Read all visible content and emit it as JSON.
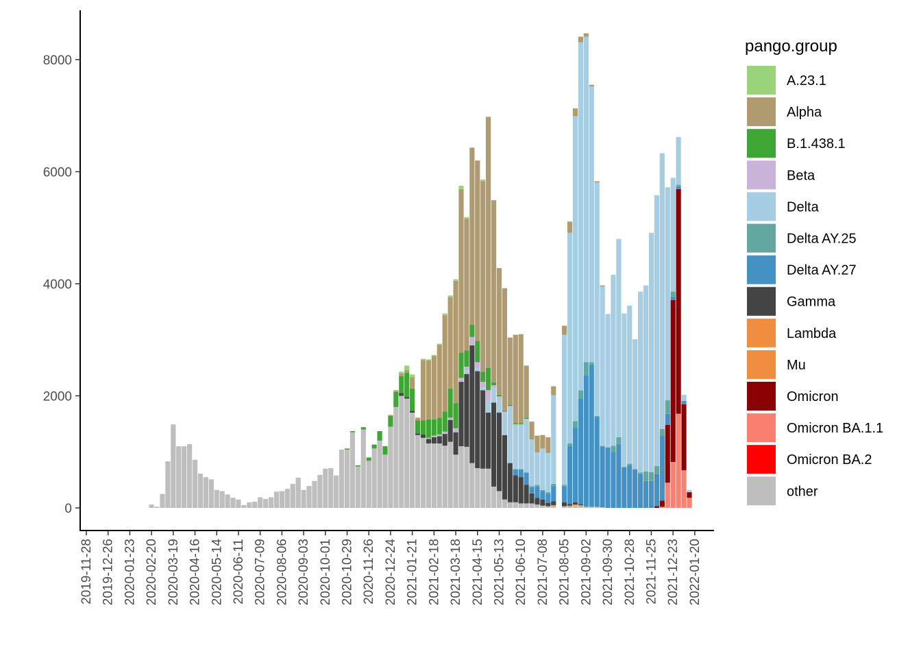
{
  "chart_data": {
    "type": "bar",
    "stacked": true,
    "title": "",
    "xlabel": "",
    "ylabel": "",
    "ylim": [
      0,
      8800
    ],
    "y_ticks": [
      0,
      2000,
      4000,
      6000,
      8000
    ],
    "x_ticks": [
      "2019-11-28",
      "2019-12-26",
      "2020-01-23",
      "2020-02-20",
      "2020-03-19",
      "2020-04-16",
      "2020-05-14",
      "2020-06-11",
      "2020-07-09",
      "2020-08-06",
      "2020-09-03",
      "2020-10-01",
      "2020-10-29",
      "2020-11-26",
      "2020-12-24",
      "2021-01-21",
      "2021-02-18",
      "2021-03-18",
      "2021-04-15",
      "2021-05-13",
      "2021-06-10",
      "2021-07-08",
      "2021-08-05",
      "2021-09-02",
      "2021-09-30",
      "2021-10-28",
      "2021-11-25",
      "2021-12-23",
      "2022-01-20"
    ],
    "x_start": "2019-11-28",
    "bar_interval_days": 7,
    "grid": false,
    "legend": {
      "title": "pango.group",
      "position": "right",
      "entries": [
        {
          "name": "A.23.1",
          "color": "#9ad47a"
        },
        {
          "name": "Alpha",
          "color": "#b09a70"
        },
        {
          "name": "B.1.438.1",
          "color": "#3fa535"
        },
        {
          "name": "Beta",
          "color": "#c9b3d8"
        },
        {
          "name": "Delta",
          "color": "#a6cde2"
        },
        {
          "name": "Delta AY.25",
          "color": "#62a8a0"
        },
        {
          "name": "Delta AY.27",
          "color": "#4491c4"
        },
        {
          "name": "Gamma",
          "color": "#444444"
        },
        {
          "name": "Lambda",
          "color": "#f08e3f"
        },
        {
          "name": "Mu",
          "color": "#f08e3f"
        },
        {
          "name": "Omicron",
          "color": "#8b0000"
        },
        {
          "name": "Omicron BA.1.1",
          "color": "#fa8072"
        },
        {
          "name": "Omicron BA.2",
          "color": "#ff0000"
        },
        {
          "name": "other",
          "color": "#bebebe"
        }
      ]
    },
    "stack_order": [
      "other",
      "Omicron BA.2",
      "Omicron BA.1.1",
      "Omicron",
      "Mu",
      "Lambda",
      "Gamma",
      "Delta AY.27",
      "Delta AY.25",
      "Delta",
      "Beta",
      "B.1.438.1",
      "Alpha",
      "A.23.1"
    ],
    "weeks": [
      {
        "date": "2020-02-20",
        "other": 60
      },
      {
        "date": "2020-02-27",
        "other": 20
      },
      {
        "date": "2020-03-05",
        "other": 250
      },
      {
        "date": "2020-03-12",
        "other": 830
      },
      {
        "date": "2020-03-19",
        "other": 1490
      },
      {
        "date": "2020-03-26",
        "other": 1100
      },
      {
        "date": "2020-04-02",
        "other": 1100
      },
      {
        "date": "2020-04-09",
        "other": 1140
      },
      {
        "date": "2020-04-16",
        "other": 860
      },
      {
        "date": "2020-04-23",
        "other": 610
      },
      {
        "date": "2020-04-30",
        "other": 550
      },
      {
        "date": "2020-05-07",
        "other": 510
      },
      {
        "date": "2020-05-14",
        "other": 320
      },
      {
        "date": "2020-05-21",
        "other": 300
      },
      {
        "date": "2020-05-28",
        "other": 240
      },
      {
        "date": "2020-06-04",
        "other": 180
      },
      {
        "date": "2020-06-11",
        "other": 150
      },
      {
        "date": "2020-06-18",
        "other": 50
      },
      {
        "date": "2020-06-25",
        "other": 100
      },
      {
        "date": "2020-07-02",
        "other": 110
      },
      {
        "date": "2020-07-09",
        "other": 190
      },
      {
        "date": "2020-07-16",
        "other": 160
      },
      {
        "date": "2020-07-23",
        "other": 190
      },
      {
        "date": "2020-07-30",
        "other": 290
      },
      {
        "date": "2020-08-06",
        "other": 300
      },
      {
        "date": "2020-08-13",
        "other": 340
      },
      {
        "date": "2020-08-20",
        "other": 430
      },
      {
        "date": "2020-08-27",
        "other": 540
      },
      {
        "date": "2020-09-03",
        "other": 320
      },
      {
        "date": "2020-09-10",
        "other": 390
      },
      {
        "date": "2020-09-17",
        "other": 480
      },
      {
        "date": "2020-09-24",
        "other": 590
      },
      {
        "date": "2020-10-01",
        "other": 700
      },
      {
        "date": "2020-10-08",
        "other": 710
      },
      {
        "date": "2020-10-15",
        "other": 580
      },
      {
        "date": "2020-10-22",
        "other": 1040
      },
      {
        "date": "2020-10-29",
        "other": 1040,
        "B.1.438.1": 20
      },
      {
        "date": "2020-11-05",
        "other": 1350,
        "B.1.438.1": 20
      },
      {
        "date": "2020-11-12",
        "other": 740,
        "B.1.438.1": 20
      },
      {
        "date": "2020-11-19",
        "other": 1400,
        "B.1.438.1": 40
      },
      {
        "date": "2020-11-26",
        "other": 840,
        "B.1.438.1": 60
      },
      {
        "date": "2020-12-03",
        "other": 1060,
        "B.1.438.1": 70
      },
      {
        "date": "2020-12-10",
        "other": 1200,
        "B.1.438.1": 170
      },
      {
        "date": "2020-12-17",
        "other": 950,
        "B.1.438.1": 150
      },
      {
        "date": "2020-12-24",
        "other": 1450,
        "B.1.438.1": 190,
        "Alpha": 20
      },
      {
        "date": "2020-12-31",
        "other": 1800,
        "B.1.438.1": 270,
        "Alpha": 30
      },
      {
        "date": "2021-01-07",
        "other": 2000,
        "Gamma": 50,
        "B.1.438.1": 300,
        "Alpha": 50,
        "A.23.1": 30
      },
      {
        "date": "2021-01-14",
        "other": 1950,
        "Gamma": 30,
        "B.1.438.1": 430,
        "Alpha": 50,
        "A.23.1": 80
      },
      {
        "date": "2021-01-21",
        "other": 1700,
        "Gamma": 30,
        "B.1.438.1": 400,
        "Alpha": 200,
        "A.23.1": 50
      },
      {
        "date": "2021-01-28",
        "other": 1300,
        "Gamma": 30,
        "B.1.438.1": 230,
        "Alpha": 50
      },
      {
        "date": "2021-02-04",
        "other": 1250,
        "Gamma": 60,
        "B.1.438.1": 250,
        "Alpha": 1080,
        "A.23.1": 20
      },
      {
        "date": "2021-02-11",
        "other": 1150,
        "Gamma": 80,
        "Beta": 20,
        "B.1.438.1": 330,
        "Alpha": 1050,
        "A.23.1": 20
      },
      {
        "date": "2021-02-18",
        "other": 1150,
        "Gamma": 110,
        "Beta": 30,
        "B.1.438.1": 290,
        "Alpha": 1130,
        "A.23.1": 20
      },
      {
        "date": "2021-02-25",
        "other": 1150,
        "Gamma": 130,
        "Beta": 30,
        "B.1.438.1": 300,
        "Alpha": 1300,
        "A.23.1": 20
      },
      {
        "date": "2021-03-04",
        "other": 1110,
        "Gamma": 210,
        "Beta": 40,
        "B.1.438.1": 360,
        "Alpha": 1720,
        "A.23.1": 30
      },
      {
        "date": "2021-03-11",
        "other": 1180,
        "Gamma": 390,
        "Beta": 40,
        "B.1.438.1": 520,
        "Alpha": 1630,
        "A.23.1": 30
      },
      {
        "date": "2021-03-18",
        "other": 950,
        "Gamma": 400,
        "Beta": 70,
        "B.1.438.1": 450,
        "Alpha": 2180,
        "A.23.1": 30
      },
      {
        "date": "2021-03-25",
        "other": 1100,
        "Gamma": 1150,
        "Beta": 70,
        "B.1.438.1": 450,
        "Alpha": 2920,
        "A.23.1": 60
      },
      {
        "date": "2021-04-01",
        "other": 1090,
        "Gamma": 1300,
        "Delta": 60,
        "Beta": 70,
        "B.1.438.1": 290,
        "Alpha": 2350,
        "A.23.1": 30
      },
      {
        "date": "2021-04-08",
        "other": 800,
        "Gamma": 2100,
        "Beta": 150,
        "B.1.438.1": 220,
        "Alpha": 3160
      },
      {
        "date": "2021-04-15",
        "other": 710,
        "Gamma": 1730,
        "Delta": 50,
        "Beta": 110,
        "B.1.438.1": 380,
        "Alpha": 3220
      },
      {
        "date": "2021-04-22",
        "other": 700,
        "Gamma": 1400,
        "Delta": 50,
        "Beta": 100,
        "B.1.438.1": 180,
        "Alpha": 3400,
        "A.23.1": 30
      },
      {
        "date": "2021-04-29",
        "other": 700,
        "Gamma": 1000,
        "Delta": 220,
        "Beta": 180,
        "B.1.438.1": 400,
        "Alpha": 4480
      },
      {
        "date": "2021-05-06",
        "other": 380,
        "Gamma": 1500,
        "Delta": 250,
        "Beta": 60,
        "B.1.438.1": 50,
        "Alpha": 3250
      },
      {
        "date": "2021-05-13",
        "other": 300,
        "Gamma": 1400,
        "Delta": 250,
        "Beta": 40,
        "B.1.438.1": 30,
        "Alpha": 2260
      },
      {
        "date": "2021-05-20",
        "other": 150,
        "Gamma": 1150,
        "Delta": 400,
        "Beta": 20,
        "B.1.438.1": 20,
        "Alpha": 2180
      },
      {
        "date": "2021-05-27",
        "other": 100,
        "Gamma": 700,
        "Delta": 1000,
        "Beta": 20,
        "B.1.438.1": 20,
        "Alpha": 1200
      },
      {
        "date": "2021-06-03",
        "other": 100,
        "Gamma": 480,
        "Delta AY.27": 110,
        "Delta": 800,
        "B.1.438.1": 20,
        "Alpha": 1580
      },
      {
        "date": "2021-06-10",
        "other": 80,
        "Gamma": 470,
        "Delta AY.27": 140,
        "Delta": 800,
        "B.1.438.1": 20,
        "Alpha": 1590
      },
      {
        "date": "2021-06-17",
        "other": 80,
        "Gamma": 330,
        "Delta AY.27": 220,
        "Delta": 960,
        "B.1.438.1": 20,
        "Alpha": 930
      },
      {
        "date": "2021-06-24",
        "other": 80,
        "Gamma": 180,
        "Delta AY.27": 110,
        "Delta AY.25": 20,
        "Delta": 830,
        "Alpha": 320
      },
      {
        "date": "2021-07-01",
        "other": 60,
        "Gamma": 120,
        "Delta AY.27": 200,
        "Delta AY.25": 30,
        "Delta": 580,
        "Alpha": 300
      },
      {
        "date": "2021-07-08",
        "other": 40,
        "Gamma": 110,
        "Delta AY.27": 150,
        "Delta AY.25": 20,
        "Delta": 740,
        "Alpha": 240
      },
      {
        "date": "2021-07-15",
        "other": 30,
        "Gamma": 60,
        "Delta AY.27": 160,
        "Delta AY.25": 30,
        "Delta": 700,
        "Alpha": 280
      },
      {
        "date": "2021-07-22",
        "other": 30,
        "Gamma": 70,
        "Lambda": 20,
        "Delta AY.27": 270,
        "Delta AY.25": 40,
        "Delta": 1580,
        "Alpha": 160
      },
      {
        "date": "2021-08-05",
        "other": 30,
        "Gamma": 70,
        "Delta AY.27": 280,
        "Delta AY.25": 30,
        "Delta": 2680,
        "Alpha": 160
      },
      {
        "date": "2021-08-12",
        "other": 20,
        "Gamma": 30,
        "Lambda": 20,
        "Delta AY.27": 1040,
        "Delta AY.25": 40,
        "Delta": 3760,
        "Alpha": 200
      },
      {
        "date": "2021-08-19",
        "other": 40,
        "Gamma": 40,
        "Lambda": 20,
        "Delta AY.27": 1330,
        "Delta AY.25": 120,
        "Delta": 5440,
        "Alpha": 140
      },
      {
        "date": "2021-08-26",
        "other": 30,
        "Gamma": 20,
        "Mu": 20,
        "Delta AY.27": 1880,
        "Delta AY.25": 150,
        "Delta": 6210,
        "Alpha": 100
      },
      {
        "date": "2021-09-02",
        "other": 20,
        "Delta AY.27": 2350,
        "Delta AY.25": 230,
        "Delta": 5810,
        "Alpha": 60
      },
      {
        "date": "2021-09-09",
        "other": 20,
        "Delta AY.27": 2540,
        "Delta AY.25": 40,
        "Delta": 4920,
        "Alpha": 30
      },
      {
        "date": "2021-09-16",
        "other": 20,
        "Delta AY.27": 1600,
        "Delta AY.25": 20,
        "Delta": 4170,
        "Alpha": 20
      },
      {
        "date": "2021-09-23",
        "other": 10,
        "Delta AY.27": 1080,
        "Delta AY.25": 20,
        "Delta": 2840,
        "Alpha": 20
      },
      {
        "date": "2021-09-30",
        "Delta AY.27": 1080,
        "Delta": 2380
      },
      {
        "date": "2021-10-07",
        "Delta AY.27": 1000,
        "Delta AY.25": 110,
        "Delta": 3050
      },
      {
        "date": "2021-10-14",
        "Delta AY.27": 1140,
        "Delta AY.25": 120,
        "Delta": 3540
      },
      {
        "date": "2021-10-21",
        "Delta AY.27": 730,
        "Delta": 2740
      },
      {
        "date": "2021-10-28",
        "Delta AY.27": 760,
        "Delta AY.25": 30,
        "Delta": 2820
      },
      {
        "date": "2021-11-04",
        "Delta AY.27": 690,
        "Delta": 2320
      },
      {
        "date": "2021-11-11",
        "Delta AY.27": 600,
        "Delta AY.25": 30,
        "Delta": 3230
      },
      {
        "date": "2021-11-18",
        "Delta AY.27": 480,
        "Delta AY.25": 170,
        "Delta": 3320
      },
      {
        "date": "2021-11-25",
        "Delta AY.27": 480,
        "Delta AY.25": 160,
        "Delta": 4270
      },
      {
        "date": "2021-12-02",
        "Omicron": 30,
        "Delta AY.27": 570,
        "Delta AY.25": 150,
        "Delta": 4830
      },
      {
        "date": "2021-12-09",
        "Omicron BA.1.1": 20,
        "Omicron": 110,
        "Delta AY.27": 1160,
        "Delta AY.25": 120,
        "Delta": 4920
      },
      {
        "date": "2021-12-16",
        "Omicron BA.1.1": 450,
        "Omicron": 1030,
        "Delta AY.27": 200,
        "Delta AY.25": 240,
        "Delta": 3800
      },
      {
        "date": "2021-12-23",
        "Omicron BA.1.1": 820,
        "Omicron": 2890,
        "Delta AY.27": 60,
        "Delta AY.25": 90,
        "Delta": 2030
      },
      {
        "date": "2021-12-30",
        "Omicron BA.1.1": 1680,
        "Omicron": 4010,
        "Delta AY.27": 50,
        "Delta AY.25": 30,
        "Delta": 850
      },
      {
        "date": "2022-01-06",
        "Omicron BA.1.1": 670,
        "Omicron": 1180,
        "Delta AY.27": 60,
        "Delta": 110
      },
      {
        "date": "2022-01-13",
        "Omicron BA.1.1": 180,
        "Omicron": 100,
        "Delta": 40
      }
    ]
  }
}
